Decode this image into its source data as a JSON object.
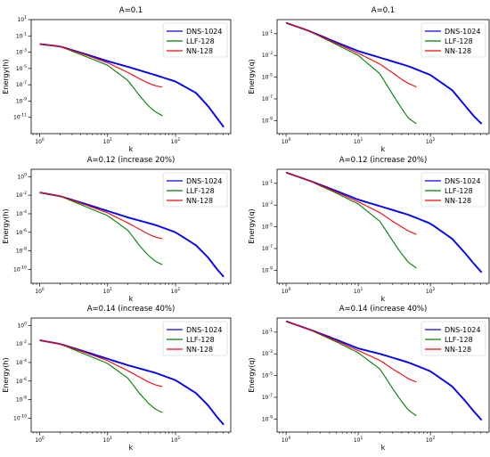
{
  "chart_data": [
    {
      "type": "line",
      "title": "A=0.1",
      "xlabel": "k",
      "ylabel": "Energy(h)",
      "xscale": "log",
      "yscale": "log",
      "xlim": [
        0.75,
        650
      ],
      "ylim_exp": [
        -13,
        1
      ],
      "x_tick_exps": [
        0,
        1,
        2
      ],
      "x_tick_labels": [
        "10^0",
        "10^1",
        "10^2"
      ],
      "y_tick_exps": [
        1,
        -1,
        -3,
        -5,
        -7,
        -9,
        -11
      ],
      "y_tick_labels": [
        "10^1",
        "10^-1",
        "10^-3",
        "10^-5",
        "10^-7",
        "10^-9",
        "10^-11"
      ],
      "legend": "top-right",
      "series": [
        {
          "name": "DNS-1024",
          "color": "#0000ff",
          "k": [
            1,
            2,
            5,
            10,
            20,
            50,
            100,
            200,
            300,
            400,
            512
          ],
          "logE": [
            -2.0,
            -2.3,
            -3.3,
            -4.1,
            -4.8,
            -5.8,
            -6.6,
            -8.0,
            -9.6,
            -11.0,
            -12.2
          ]
        },
        {
          "name": "LLF-128",
          "color": "#008000",
          "k": [
            1,
            2,
            5,
            10,
            20,
            30,
            40,
            50,
            64
          ],
          "logE": [
            -2.0,
            -2.3,
            -3.6,
            -4.6,
            -6.5,
            -8.4,
            -9.6,
            -10.3,
            -10.8
          ]
        },
        {
          "name": "NN-128",
          "color": "#ff0000",
          "k": [
            1,
            2,
            5,
            10,
            20,
            30,
            40,
            50,
            64
          ],
          "logE": [
            -2.0,
            -2.3,
            -3.4,
            -4.3,
            -5.5,
            -6.3,
            -6.8,
            -7.1,
            -7.3
          ]
        }
      ]
    },
    {
      "type": "line",
      "title": "A=0.1",
      "xlabel": "k",
      "ylabel": "Energy(q)",
      "xscale": "log",
      "yscale": "log",
      "xlim": [
        0.75,
        650
      ],
      "ylim_exp": [
        -10.2,
        0.3
      ],
      "x_tick_exps": [
        0,
        1,
        2
      ],
      "x_tick_labels": [
        "10^0",
        "10^1",
        "10^2"
      ],
      "y_tick_exps": [
        -1,
        -3,
        -5,
        -7,
        -9
      ],
      "y_tick_labels": [
        "10^-1",
        "10^-3",
        "10^-5",
        "10^-7",
        "10^-9"
      ],
      "legend": "top-right",
      "series": [
        {
          "name": "DNS-1024",
          "color": "#0000ff",
          "k": [
            1,
            2,
            5,
            10,
            20,
            50,
            100,
            200,
            300,
            400,
            512
          ],
          "logE": [
            0.0,
            -0.7,
            -1.8,
            -2.6,
            -3.2,
            -4.0,
            -4.8,
            -6.2,
            -7.6,
            -8.6,
            -9.3
          ]
        },
        {
          "name": "LLF-128",
          "color": "#008000",
          "k": [
            1,
            2,
            5,
            10,
            20,
            30,
            40,
            50,
            64
          ],
          "logE": [
            0.0,
            -0.7,
            -2.0,
            -3.0,
            -4.7,
            -6.6,
            -7.9,
            -8.8,
            -9.3
          ]
        },
        {
          "name": "NN-128",
          "color": "#ff0000",
          "k": [
            1,
            2,
            5,
            10,
            20,
            30,
            40,
            50,
            64
          ],
          "logE": [
            0.0,
            -0.7,
            -1.9,
            -2.8,
            -3.8,
            -4.6,
            -5.2,
            -5.6,
            -5.9
          ]
        }
      ]
    },
    {
      "type": "line",
      "title": "A=0.12 (increase 20%)",
      "xlabel": "k",
      "ylabel": "Energy(h)",
      "xscale": "log",
      "yscale": "log",
      "xlim": [
        0.75,
        650
      ],
      "ylim_exp": [
        -11.5,
        0.8
      ],
      "x_tick_exps": [
        0,
        1,
        2
      ],
      "x_tick_labels": [
        "10^0",
        "10^1",
        "10^2"
      ],
      "y_tick_exps": [
        0,
        -2,
        -4,
        -6,
        -8,
        -10
      ],
      "y_tick_labels": [
        "10^0",
        "10^-2",
        "10^-4",
        "10^-6",
        "10^-8",
        "10^-10"
      ],
      "legend": "top-right",
      "series": [
        {
          "name": "DNS-1024",
          "color": "#0000ff",
          "k": [
            1,
            2,
            5,
            10,
            20,
            50,
            100,
            200,
            300,
            400,
            512
          ],
          "logE": [
            -1.7,
            -2.1,
            -3.0,
            -3.7,
            -4.4,
            -5.2,
            -6.0,
            -7.4,
            -8.7,
            -9.9,
            -10.8
          ]
        },
        {
          "name": "LLF-128",
          "color": "#008000",
          "k": [
            1,
            2,
            5,
            10,
            20,
            30,
            40,
            50,
            64
          ],
          "logE": [
            -1.7,
            -2.1,
            -3.3,
            -4.2,
            -5.8,
            -7.5,
            -8.5,
            -9.1,
            -9.5
          ]
        },
        {
          "name": "NN-128",
          "color": "#ff0000",
          "k": [
            1,
            2,
            5,
            10,
            20,
            30,
            40,
            50,
            64
          ],
          "logE": [
            -1.7,
            -2.1,
            -3.1,
            -3.9,
            -5.0,
            -5.7,
            -6.2,
            -6.5,
            -6.7
          ]
        }
      ]
    },
    {
      "type": "line",
      "title": "A=0.12 (increase 20%)",
      "xlabel": "k",
      "ylabel": "Energy(q)",
      "xscale": "log",
      "yscale": "log",
      "xlim": [
        0.75,
        650
      ],
      "ylim_exp": [
        -10.2,
        0.3
      ],
      "x_tick_exps": [
        0,
        1,
        2
      ],
      "x_tick_labels": [
        "10^0",
        "10^1",
        "10^2"
      ],
      "y_tick_exps": [
        -1,
        -3,
        -5,
        -7,
        -9
      ],
      "y_tick_labels": [
        "10^-1",
        "10^-3",
        "10^-5",
        "10^-7",
        "10^-9"
      ],
      "legend": "top-right",
      "series": [
        {
          "name": "DNS-1024",
          "color": "#0000ff",
          "k": [
            1,
            2,
            5,
            10,
            20,
            50,
            100,
            200,
            300,
            400,
            512
          ],
          "logE": [
            0.0,
            -0.7,
            -1.7,
            -2.5,
            -3.1,
            -3.9,
            -4.7,
            -6.1,
            -7.4,
            -8.4,
            -9.2
          ]
        },
        {
          "name": "LLF-128",
          "color": "#008000",
          "k": [
            1,
            2,
            5,
            10,
            20,
            30,
            40,
            50,
            64
          ],
          "logE": [
            0.0,
            -0.7,
            -1.9,
            -2.9,
            -4.5,
            -6.3,
            -7.5,
            -8.3,
            -8.8
          ]
        },
        {
          "name": "NN-128",
          "color": "#ff0000",
          "k": [
            1,
            2,
            5,
            10,
            20,
            30,
            40,
            50,
            64
          ],
          "logE": [
            0.0,
            -0.7,
            -1.8,
            -2.7,
            -3.7,
            -4.5,
            -5.0,
            -5.4,
            -5.7
          ]
        }
      ]
    },
    {
      "type": "line",
      "title": "A=0.14 (increase 40%)",
      "xlabel": "k",
      "ylabel": "Energy(h)",
      "xscale": "log",
      "yscale": "log",
      "xlim": [
        0.75,
        650
      ],
      "ylim_exp": [
        -11.5,
        0.8
      ],
      "x_tick_exps": [
        0,
        1,
        2
      ],
      "x_tick_labels": [
        "10^0",
        "10^1",
        "10^2"
      ],
      "y_tick_exps": [
        0,
        -2,
        -4,
        -6,
        -8,
        -10
      ],
      "y_tick_labels": [
        "10^0",
        "10^-2",
        "10^-4",
        "10^-6",
        "10^-8",
        "10^-10"
      ],
      "legend": "top-right",
      "series": [
        {
          "name": "DNS-1024",
          "color": "#0000ff",
          "k": [
            1,
            2,
            5,
            10,
            20,
            50,
            100,
            200,
            300,
            400,
            512
          ],
          "logE": [
            -1.6,
            -2.0,
            -2.9,
            -3.6,
            -4.3,
            -5.1,
            -5.9,
            -7.3,
            -8.6,
            -9.8,
            -10.7
          ]
        },
        {
          "name": "LLF-128",
          "color": "#008000",
          "k": [
            1,
            2,
            5,
            10,
            20,
            30,
            40,
            50,
            64
          ],
          "logE": [
            -1.6,
            -2.0,
            -3.2,
            -4.1,
            -5.7,
            -7.4,
            -8.4,
            -9.0,
            -9.4
          ]
        },
        {
          "name": "NN-128",
          "color": "#ff0000",
          "k": [
            1,
            2,
            5,
            10,
            20,
            30,
            40,
            50,
            64
          ],
          "logE": [
            -1.6,
            -2.0,
            -3.0,
            -3.8,
            -4.9,
            -5.6,
            -6.1,
            -6.4,
            -6.6
          ]
        }
      ]
    },
    {
      "type": "line",
      "title": "A=0.14 (increase 40%)",
      "xlabel": "k",
      "ylabel": "Energy(q)",
      "xscale": "log",
      "yscale": "log",
      "xlim": [
        0.75,
        650
      ],
      "ylim_exp": [
        -10.2,
        0.3
      ],
      "x_tick_exps": [
        0,
        1,
        2
      ],
      "x_tick_labels": [
        "10^0",
        "10^1",
        "10^2"
      ],
      "y_tick_exps": [
        -1,
        -3,
        -5,
        -7,
        -9
      ],
      "y_tick_labels": [
        "10^-1",
        "10^-3",
        "10^-5",
        "10^-7",
        "10^-9"
      ],
      "legend": "top-right",
      "series": [
        {
          "name": "DNS-1024",
          "color": "#0000ff",
          "k": [
            1,
            2,
            5,
            10,
            20,
            50,
            100,
            200,
            300,
            400,
            512
          ],
          "logE": [
            0.0,
            -0.7,
            -1.7,
            -2.5,
            -3.0,
            -3.8,
            -4.6,
            -6.0,
            -7.3,
            -8.3,
            -9.1
          ]
        },
        {
          "name": "LLF-128",
          "color": "#008000",
          "k": [
            1,
            2,
            5,
            10,
            20,
            30,
            40,
            50,
            64
          ],
          "logE": [
            0.0,
            -0.7,
            -1.9,
            -2.9,
            -4.4,
            -6.2,
            -7.4,
            -8.2,
            -8.7
          ]
        },
        {
          "name": "NN-128",
          "color": "#ff0000",
          "k": [
            1,
            2,
            5,
            10,
            20,
            30,
            40,
            50,
            64
          ],
          "logE": [
            0.0,
            -0.7,
            -1.8,
            -2.7,
            -3.6,
            -4.4,
            -4.9,
            -5.3,
            -5.6
          ]
        }
      ]
    }
  ]
}
